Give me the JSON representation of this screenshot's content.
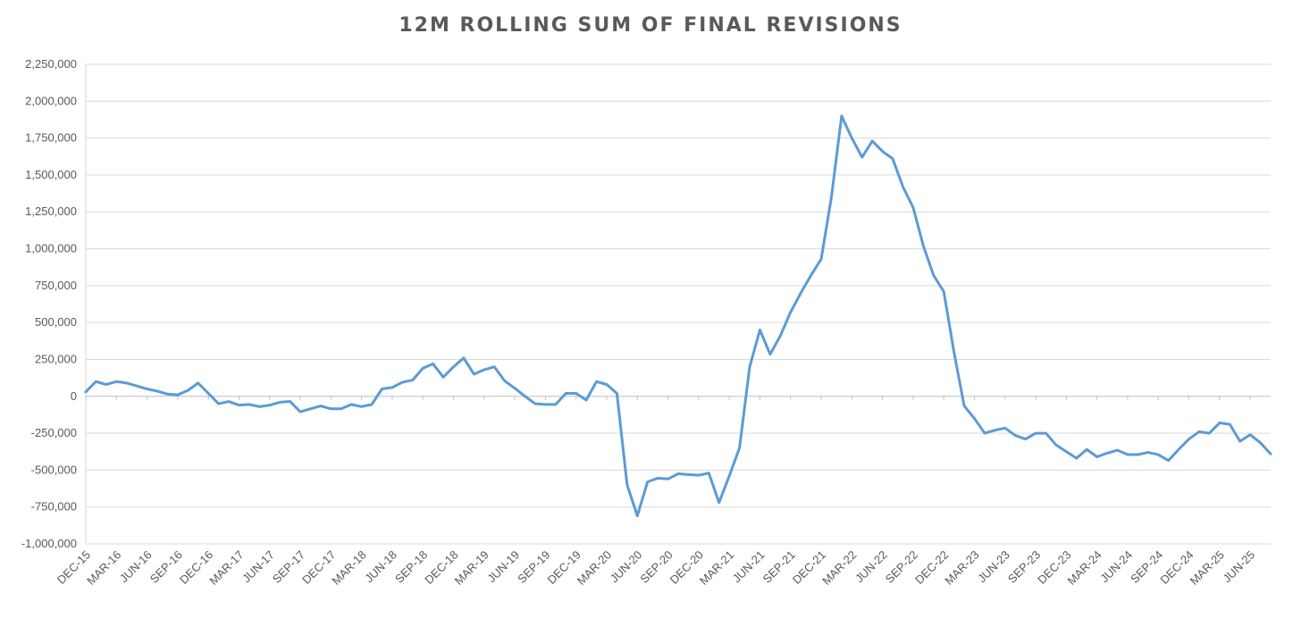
{
  "chart_data": {
    "type": "line",
    "title": "12M ROLLING SUM OF FINAL REVISIONS",
    "xlabel": "",
    "ylabel": "",
    "ylim": [
      -1000000,
      2250000
    ],
    "yticks": [
      "2,250,000",
      "2,000,000",
      "1,750,000",
      "1,500,000",
      "1,250,000",
      "1,000,000",
      "750,000",
      "500,000",
      "250,000",
      "0",
      "-250,000",
      "-500,000",
      "-750,000",
      "-1,000,000"
    ],
    "ytick_values": [
      2250000,
      2000000,
      1750000,
      1500000,
      1250000,
      1000000,
      750000,
      500000,
      250000,
      0,
      -250000,
      -500000,
      -750000,
      -1000000
    ],
    "xticks": [
      "DEC-15",
      "MAR-16",
      "JUN-16",
      "SEP-16",
      "DEC-16",
      "MAR-17",
      "JUN-17",
      "SEP-17",
      "DEC-17",
      "MAR-18",
      "JUN-18",
      "SEP-18",
      "DEC-18",
      "MAR-19",
      "JUN-19",
      "SEP-19",
      "DEC-19",
      "MAR-20",
      "JUN-20",
      "SEP-20",
      "DEC-20",
      "MAR-21",
      "JUN-21",
      "SEP-21",
      "DEC-21",
      "MAR-22",
      "JUN-22",
      "SEP-22",
      "DEC-22",
      "MAR-23",
      "JUN-23",
      "SEP-23",
      "DEC-23",
      "MAR-24",
      "JUN-24",
      "SEP-24",
      "DEC-24",
      "MAR-25",
      "JUN-25"
    ],
    "grid": true,
    "legend": "none",
    "line_color": "#5B9BD5",
    "series": [
      {
        "values": [
          30000,
          100000,
          80000,
          100000,
          90000,
          70000,
          50000,
          35000,
          15000,
          10000,
          40000,
          90000,
          20000,
          -50000,
          -35000,
          -60000,
          -55000,
          -70000,
          -60000,
          -40000,
          -35000,
          -105000,
          -85000,
          -65000,
          -85000,
          -85000,
          -55000,
          -70000,
          -55000,
          50000,
          60000,
          95000,
          110000,
          190000,
          220000,
          130000,
          200000,
          260000,
          150000,
          180000,
          200000,
          105000,
          55000,
          0,
          -50000,
          -55000,
          -55000,
          20000,
          20000,
          -25000,
          100000,
          80000,
          20000,
          -600000,
          -810000,
          -580000,
          -555000,
          -560000,
          -525000,
          -530000,
          -535000,
          -520000,
          -720000,
          -540000,
          -350000,
          200000,
          450000,
          285000,
          410000,
          570000,
          700000,
          820000,
          930000,
          1350000,
          1900000,
          1750000,
          1620000,
          1730000,
          1660000,
          1610000,
          1420000,
          1280000,
          1020000,
          820000,
          710000,
          300000,
          -65000,
          -150000,
          -250000,
          -230000,
          -215000,
          -265000,
          -290000,
          -250000,
          -250000,
          -330000,
          -375000,
          -420000,
          -360000,
          -410000,
          -385000,
          -365000,
          -395000,
          -395000,
          -380000,
          -395000,
          -435000,
          -360000,
          -290000,
          -240000,
          -250000,
          -180000,
          -190000,
          -305000,
          -260000,
          -315000,
          -390000
        ]
      }
    ]
  }
}
